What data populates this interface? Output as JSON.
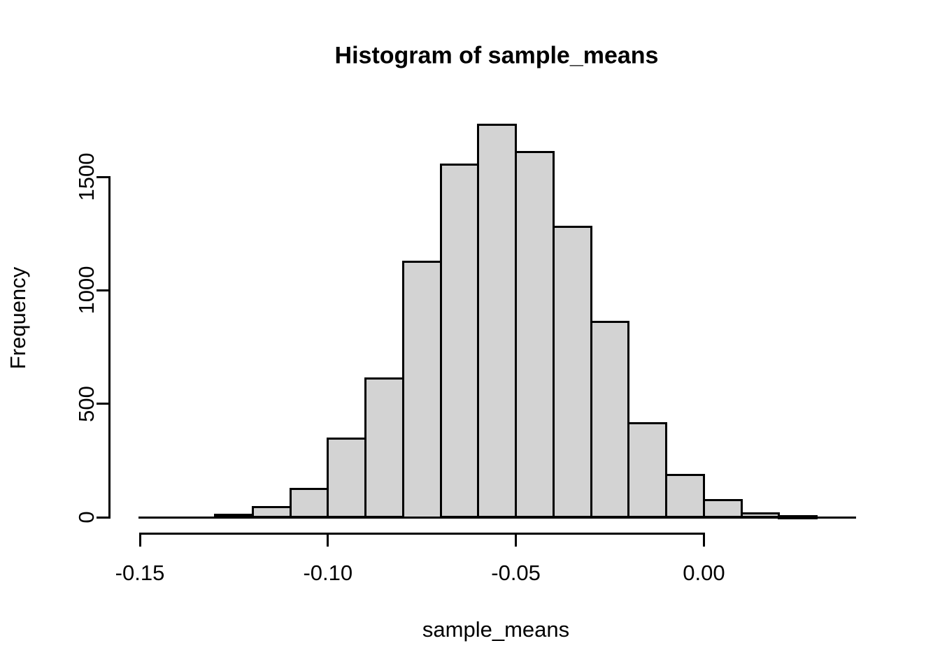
{
  "chart_data": {
    "type": "bar",
    "subtype": "histogram",
    "title": "Histogram of sample_means",
    "xlabel": "sample_means",
    "ylabel": "Frequency",
    "bin_edges": [
      -0.13,
      -0.12,
      -0.11,
      -0.1,
      -0.09,
      -0.08,
      -0.07,
      -0.06,
      -0.05,
      -0.04,
      -0.03,
      -0.02,
      -0.01,
      0.0,
      0.01,
      0.02,
      0.03
    ],
    "counts": [
      10,
      45,
      125,
      345,
      610,
      1125,
      1555,
      1730,
      1610,
      1280,
      860,
      415,
      185,
      75,
      18,
      5
    ],
    "x_ticks": [
      {
        "value": -0.15,
        "label": "-0.15"
      },
      {
        "value": -0.1,
        "label": "-0.10"
      },
      {
        "value": -0.05,
        "label": "-0.05"
      },
      {
        "value": 0.0,
        "label": "0.00"
      }
    ],
    "y_ticks": [
      {
        "value": 0,
        "label": "0"
      },
      {
        "value": 500,
        "label": "500"
      },
      {
        "value": 1000,
        "label": "1000"
      },
      {
        "value": 1500,
        "label": "1500"
      }
    ],
    "xlim": [
      -0.1504,
      0.0405
    ],
    "ylim": [
      0,
      1730
    ],
    "grid": false,
    "legend_position": "none",
    "colors": {
      "bar_fill": "#d3d3d3",
      "bar_border": "#000000",
      "axis": "#000000",
      "text": "#000000",
      "background": "#ffffff"
    }
  }
}
